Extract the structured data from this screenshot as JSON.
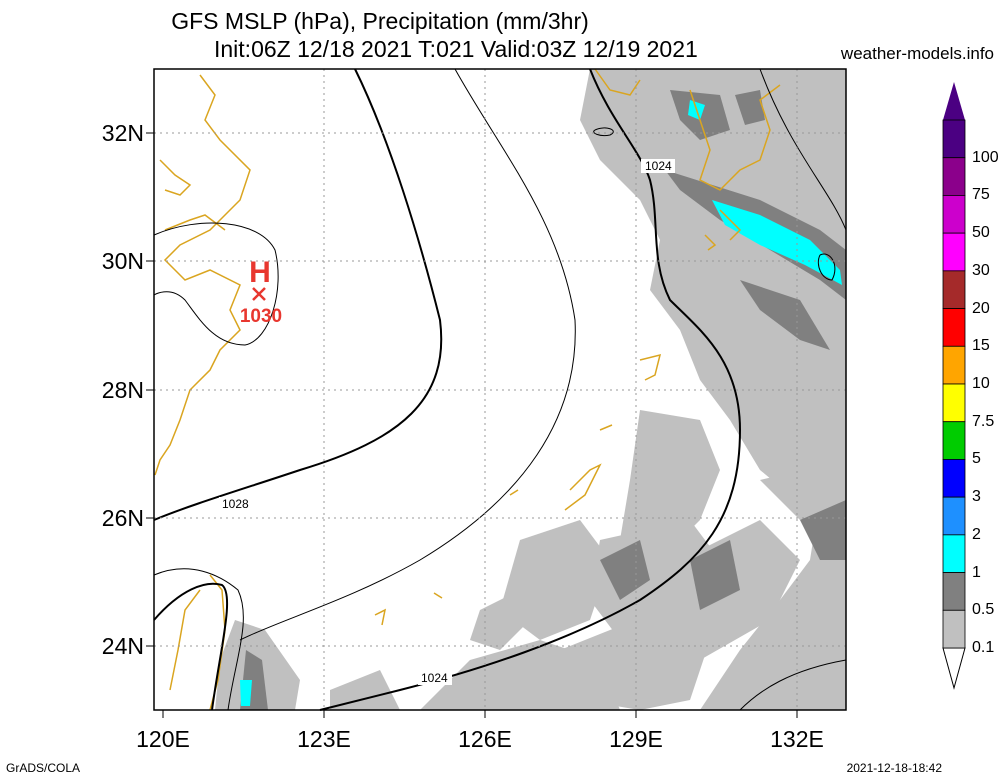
{
  "header": {
    "title_line1": "GFS MSLP (hPa), Precipitation (mm/3hr)",
    "title_line2": "Init:06Z 12/18 2021 T:021 Valid:03Z 12/19 2021",
    "site": "weather-models.info"
  },
  "axes": {
    "lat_labels": [
      "32N",
      "30N",
      "28N",
      "26N",
      "24N"
    ],
    "lon_labels": [
      "120E",
      "123E",
      "126E",
      "129E",
      "132E"
    ]
  },
  "pressure": {
    "high_symbol": "H",
    "high_value": "1030",
    "high_color": "#e8372f",
    "isobar_labels": [
      "1024",
      "1028",
      "1024"
    ]
  },
  "colorbar": {
    "labels": [
      "100",
      "75",
      "50",
      "30",
      "20",
      "15",
      "10",
      "7.5",
      "5",
      "3",
      "2",
      "1",
      "0.5",
      "0.1"
    ],
    "colors": [
      "#4b0082",
      "#8b008b",
      "#cc00cc",
      "#ff00ff",
      "#a52a2a",
      "#ff0000",
      "#ffa500",
      "#ffff00",
      "#00cc00",
      "#0000ff",
      "#1e90ff",
      "#00ffff",
      "#808080",
      "#c0c0c0"
    ]
  },
  "footer": {
    "left": "GrADS/COLA",
    "right": "2021-12-18-18:42"
  }
}
